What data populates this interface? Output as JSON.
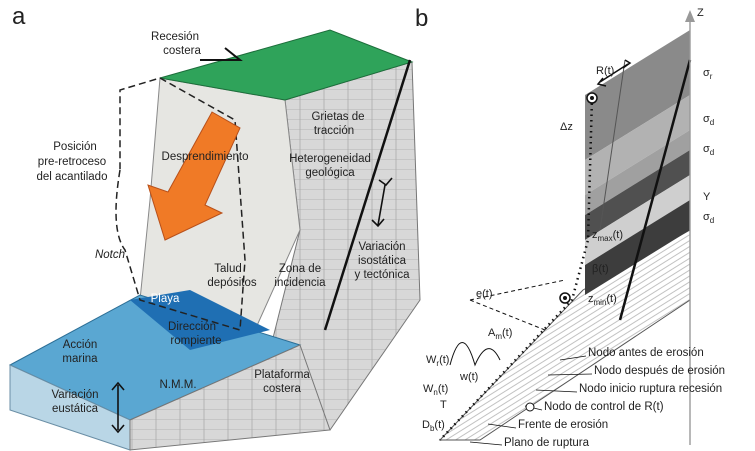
{
  "panel_a": {
    "letter": "a",
    "labels": [
      [
        "Recesión",
        "costera"
      ],
      [
        "Grietas de",
        "tracción"
      ],
      [
        "Posición",
        "pre-retroceso",
        "del acantilado"
      ],
      [
        "Desprendimiento"
      ],
      [
        "Heterogeneidad",
        "geológica"
      ],
      [
        "Notch"
      ],
      [
        "Talud",
        "depósitos"
      ],
      [
        "Zona de",
        "incidencia"
      ],
      [
        "Variación",
        "isostática",
        "y tectónica"
      ],
      [
        "Playa"
      ],
      [
        "Acción",
        "marina"
      ],
      [
        "Dirección",
        "rompiente"
      ],
      [
        "N.M.M."
      ],
      [
        "Variación",
        "eustática"
      ],
      [
        "Plataforma",
        "costera"
      ]
    ]
  },
  "panel_b": {
    "letter": "b",
    "symbols": [
      {
        "base": "Z"
      },
      {
        "base": "R(t)"
      },
      {
        "base": "Δz"
      },
      {
        "base": "σ",
        "sub": "r"
      },
      {
        "base": "σ",
        "sub": "d"
      },
      {
        "base": "σ",
        "sub": "d"
      },
      {
        "base": "Y"
      },
      {
        "base": "σ",
        "sub": "d"
      },
      {
        "base": "z",
        "sub": "max",
        "tail": "(t)"
      },
      {
        "base": "β(t)"
      },
      {
        "base": "z",
        "sub": "min",
        "tail": "(t)"
      },
      {
        "base": "e(t)"
      },
      {
        "base": "A",
        "sub": "m",
        "tail": "(t)"
      },
      {
        "base": "W",
        "sub": "r",
        "tail": "(t)"
      },
      {
        "base": "W",
        "sub": "n",
        "tail": "(t)"
      },
      {
        "base": "w(t)"
      },
      {
        "base": "T"
      },
      {
        "base": "D",
        "sub": "b",
        "tail": "(t)"
      }
    ],
    "legend": [
      "Nodo antes de erosión",
      "Nodo después de erosión",
      "Nodo inicio ruptura recesión",
      "Nodo de control de R(t)",
      "Frente de erosión",
      "Plano de ruptura"
    ]
  }
}
